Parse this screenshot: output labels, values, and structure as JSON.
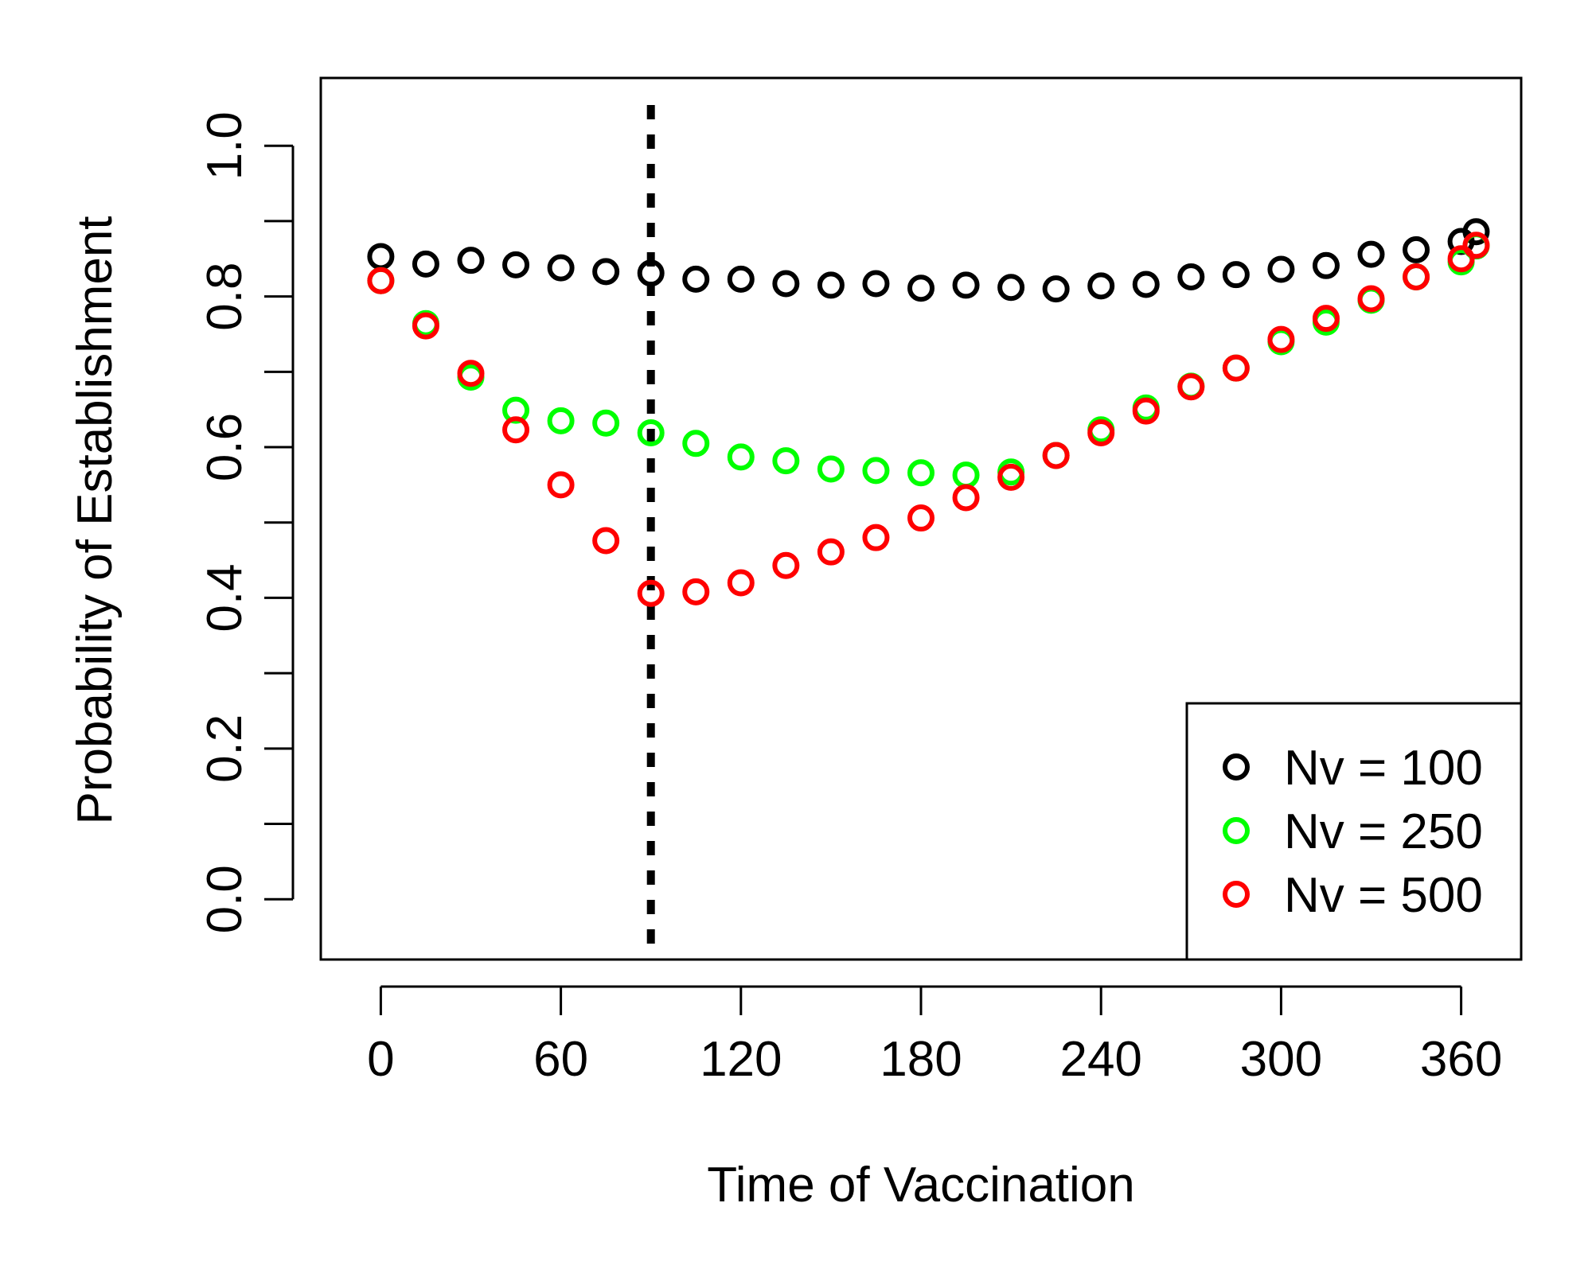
{
  "chart_data": {
    "type": "scatter",
    "title": "",
    "xlabel": "Time of Vaccination",
    "ylabel": "Probability of Establishment",
    "xlim": [
      -20,
      380
    ],
    "ylim": [
      -0.08,
      1.09
    ],
    "xticks": [
      0,
      60,
      120,
      180,
      240,
      300,
      360
    ],
    "yticks": [
      0.0,
      0.2,
      0.4,
      0.6,
      0.8,
      1.0
    ],
    "xtick_labels": [
      "0",
      "60",
      "120",
      "180",
      "240",
      "300",
      "360"
    ],
    "ytick_labels": [
      "0.0",
      "0.2",
      "0.4",
      "0.6",
      "0.8",
      "1.0"
    ],
    "grid": false,
    "legend_position": "bottom-right",
    "vline": {
      "x": 90,
      "style": "dotted",
      "color": "#000000"
    },
    "x": [
      0,
      15,
      30,
      45,
      60,
      75,
      90,
      105,
      120,
      135,
      150,
      165,
      180,
      195,
      210,
      225,
      240,
      255,
      270,
      285,
      300,
      315,
      330,
      345,
      360,
      365
    ],
    "series": [
      {
        "name": "Nv = 100",
        "color": "#000000",
        "values": [
          0.853,
          0.843,
          0.848,
          0.842,
          0.838,
          0.833,
          0.831,
          0.823,
          0.823,
          0.817,
          0.815,
          0.817,
          0.811,
          0.815,
          0.812,
          0.81,
          0.814,
          0.816,
          0.826,
          0.829,
          0.836,
          0.841,
          0.856,
          0.862,
          0.873,
          0.886
        ]
      },
      {
        "name": "Nv = 250",
        "color": "#00ff00",
        "values": [
          0.821,
          0.764,
          0.693,
          0.649,
          0.635,
          0.632,
          0.619,
          0.605,
          0.587,
          0.582,
          0.571,
          0.569,
          0.566,
          0.563,
          0.567,
          0.589,
          0.623,
          0.652,
          0.681,
          0.705,
          0.74,
          0.766,
          0.795,
          0.826,
          0.846,
          0.867
        ]
      },
      {
        "name": "Nv = 500",
        "color": "#ff0000",
        "values": [
          0.821,
          0.761,
          0.698,
          0.623,
          0.55,
          0.476,
          0.406,
          0.408,
          0.42,
          0.443,
          0.461,
          0.48,
          0.506,
          0.533,
          0.56,
          0.589,
          0.619,
          0.648,
          0.68,
          0.705,
          0.743,
          0.771,
          0.797,
          0.826,
          0.85,
          0.868
        ]
      }
    ]
  }
}
